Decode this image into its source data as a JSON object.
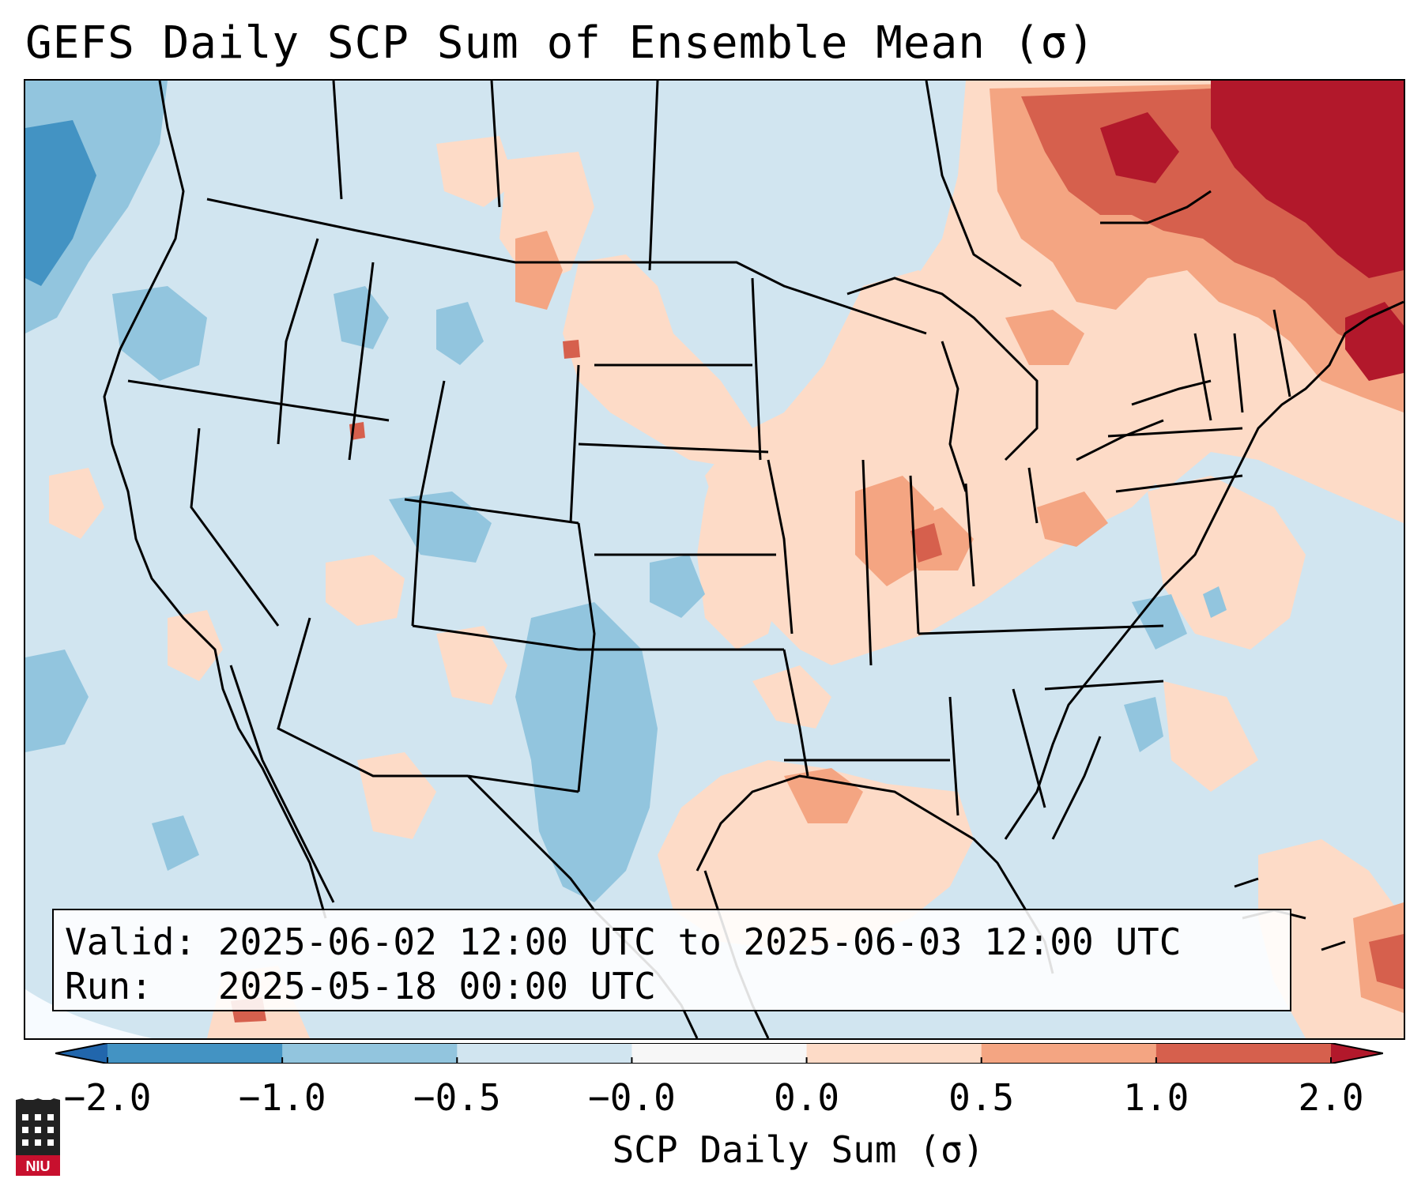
{
  "title": "GEFS Daily SCP Sum of Ensemble Mean (σ)",
  "info": {
    "valid_label": "Valid:",
    "valid_value": "2025-06-02 12:00 UTC to 2025-06-03 12:00 UTC",
    "run_label": "Run:",
    "run_value": "2025-05-18 00:00 UTC"
  },
  "colorbar": {
    "label": "SCP Daily Sum (σ)",
    "ticks": [
      "−2.0",
      "−1.0",
      "−0.5",
      "−0.0",
      "0.0",
      "0.5",
      "1.0",
      "2.0"
    ],
    "bins": [
      {
        "from": -2.0,
        "to": -1.0,
        "color": "#4393c3"
      },
      {
        "from": -1.0,
        "to": -0.5,
        "color": "#92c5de"
      },
      {
        "from": -0.5,
        "to": -0.0,
        "color": "#d1e5f0"
      },
      {
        "from": -0.0,
        "to": 0.0,
        "color": "#f7f7f7"
      },
      {
        "from": 0.0,
        "to": 0.5,
        "color": "#fddbc7"
      },
      {
        "from": 0.5,
        "to": 1.0,
        "color": "#f4a582"
      },
      {
        "from": 1.0,
        "to": 2.0,
        "color": "#d6604d"
      }
    ],
    "under_color": "#2166ac",
    "over_color": "#b2182b",
    "extend": "both"
  },
  "map": {
    "projection": "Lambert conformal, CONUS",
    "background_color": "#d1e5f0",
    "outside_domain_color": "#f7fbff",
    "boundaries": [
      "coastlines",
      "country borders",
      "US state lines"
    ]
  },
  "logo": {
    "text": "NIU"
  }
}
